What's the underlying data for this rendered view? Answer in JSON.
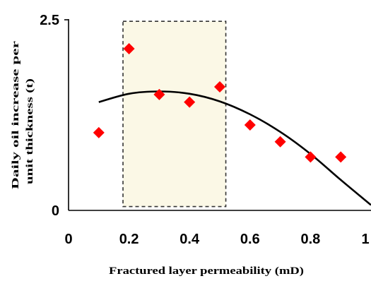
{
  "chart_data": {
    "type": "scatter",
    "title": "",
    "xlabel": "Fractured layer permeability (mD)",
    "ylabel_line1": "Daily oil increase per",
    "ylabel_line2": "unit thickness (t)",
    "xlim": [
      0,
      1
    ],
    "ylim": [
      0,
      2.5
    ],
    "x_ticks": [
      "0",
      "0.2",
      "0.4",
      "0.6",
      "0.8",
      "1"
    ],
    "y_ticks": [
      "0",
      "2.5"
    ],
    "grid": false,
    "points": [
      {
        "x": 0.1,
        "y": 1.02
      },
      {
        "x": 0.2,
        "y": 2.12
      },
      {
        "x": 0.3,
        "y": 1.52
      },
      {
        "x": 0.4,
        "y": 1.42
      },
      {
        "x": 0.5,
        "y": 1.62
      },
      {
        "x": 0.6,
        "y": 1.12
      },
      {
        "x": 0.7,
        "y": 0.9
      },
      {
        "x": 0.8,
        "y": 0.7
      },
      {
        "x": 0.9,
        "y": 0.7
      }
    ],
    "trend_curve": {
      "x": [
        0.1,
        0.2,
        0.3,
        0.4,
        0.5,
        0.6,
        0.7,
        0.8,
        0.9,
        1.0
      ],
      "y": [
        1.42,
        1.53,
        1.56,
        1.53,
        1.43,
        1.26,
        1.03,
        0.74,
        0.4,
        0.07
      ]
    },
    "highlight_region": {
      "x_range": [
        0.18,
        0.52
      ],
      "y_range": [
        0.05,
        2.48
      ]
    },
    "colors": {
      "points": "#ff0000",
      "curve": "#000000",
      "highlight_fill": "#fbf8e6",
      "highlight_border": "#333333"
    }
  }
}
